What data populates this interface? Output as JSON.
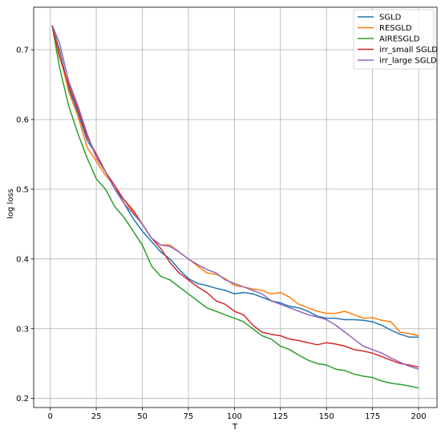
{
  "chart_data": {
    "type": "line",
    "title": "",
    "xlabel": "T",
    "ylabel": "log loss",
    "xlim": [
      -9,
      210
    ],
    "ylim": [
      0.187,
      0.761
    ],
    "xticks": [
      0,
      25,
      50,
      75,
      100,
      125,
      150,
      175,
      200
    ],
    "yticks": [
      0.2,
      0.3,
      0.4,
      0.5,
      0.6,
      0.7
    ],
    "grid": true,
    "legend_position": "top-right",
    "colors": {
      "SGLD": "#1f77b4",
      "RESGLD": "#ff7f0e",
      "AIRESGLD": "#2ca02c",
      "irr_small SGLD": "#d62728",
      "irr_large SGLD": "#9467bd"
    },
    "x": [
      1,
      5,
      10,
      15,
      20,
      25,
      30,
      35,
      40,
      45,
      50,
      55,
      60,
      65,
      70,
      75,
      80,
      85,
      90,
      95,
      100,
      105,
      110,
      115,
      120,
      125,
      130,
      135,
      140,
      145,
      150,
      155,
      160,
      165,
      170,
      175,
      180,
      185,
      190,
      195,
      200
    ],
    "series": [
      {
        "name": "SGLD",
        "values": [
          0.735,
          0.7,
          0.645,
          0.61,
          0.57,
          0.55,
          0.525,
          0.505,
          0.48,
          0.458,
          0.44,
          0.425,
          0.41,
          0.4,
          0.385,
          0.372,
          0.365,
          0.362,
          0.358,
          0.355,
          0.35,
          0.352,
          0.35,
          0.345,
          0.34,
          0.337,
          0.332,
          0.33,
          0.325,
          0.318,
          0.315,
          0.315,
          0.313,
          0.313,
          0.312,
          0.31,
          0.305,
          0.298,
          0.292,
          0.288,
          0.288
        ]
      },
      {
        "name": "RESGLD",
        "values": [
          0.735,
          0.695,
          0.64,
          0.605,
          0.56,
          0.54,
          0.52,
          0.505,
          0.485,
          0.467,
          0.45,
          0.43,
          0.42,
          0.42,
          0.41,
          0.4,
          0.39,
          0.38,
          0.378,
          0.372,
          0.362,
          0.36,
          0.357,
          0.355,
          0.35,
          0.352,
          0.345,
          0.335,
          0.33,
          0.325,
          0.322,
          0.322,
          0.325,
          0.32,
          0.315,
          0.316,
          0.312,
          0.31,
          0.295,
          0.293,
          0.29
        ]
      },
      {
        "name": "AIRESGLD",
        "values": [
          0.735,
          0.675,
          0.62,
          0.58,
          0.545,
          0.515,
          0.5,
          0.475,
          0.46,
          0.44,
          0.42,
          0.39,
          0.375,
          0.37,
          0.36,
          0.35,
          0.34,
          0.33,
          0.325,
          0.32,
          0.315,
          0.31,
          0.3,
          0.29,
          0.285,
          0.275,
          0.27,
          0.262,
          0.255,
          0.25,
          0.248,
          0.242,
          0.24,
          0.235,
          0.232,
          0.23,
          0.225,
          0.222,
          0.22,
          0.218,
          0.215
        ]
      },
      {
        "name": "irr_small SGLD",
        "values": [
          0.735,
          0.69,
          0.65,
          0.615,
          0.575,
          0.55,
          0.525,
          0.505,
          0.485,
          0.47,
          0.45,
          0.43,
          0.415,
          0.395,
          0.38,
          0.37,
          0.36,
          0.352,
          0.34,
          0.335,
          0.325,
          0.32,
          0.305,
          0.295,
          0.292,
          0.29,
          0.285,
          0.283,
          0.28,
          0.277,
          0.28,
          0.278,
          0.275,
          0.27,
          0.268,
          0.265,
          0.26,
          0.255,
          0.25,
          0.248,
          0.245
        ]
      },
      {
        "name": "irr_large SGLD",
        "values": [
          0.735,
          0.71,
          0.655,
          0.62,
          0.58,
          0.545,
          0.525,
          0.5,
          0.48,
          0.465,
          0.45,
          0.43,
          0.42,
          0.418,
          0.41,
          0.4,
          0.392,
          0.385,
          0.38,
          0.37,
          0.365,
          0.36,
          0.355,
          0.35,
          0.34,
          0.335,
          0.33,
          0.325,
          0.32,
          0.317,
          0.313,
          0.305,
          0.295,
          0.285,
          0.275,
          0.27,
          0.265,
          0.258,
          0.252,
          0.246,
          0.242
        ]
      }
    ]
  }
}
